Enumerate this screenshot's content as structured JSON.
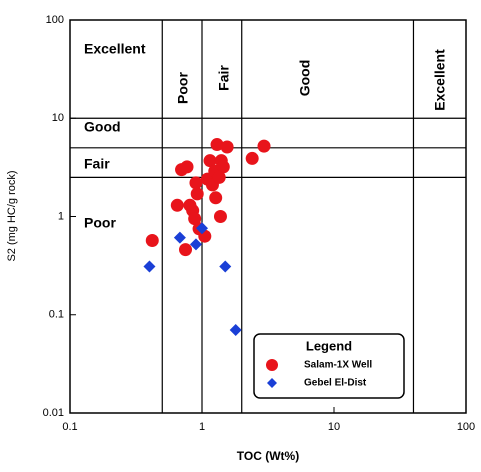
{
  "chart_data": {
    "type": "scatter",
    "x_label": "TOC (Wt%)",
    "y_label": "S2 (mg HC/g rock)",
    "log_x": true,
    "log_y": true,
    "xlim": [
      0.1,
      100
    ],
    "ylim": [
      0.01,
      100
    ],
    "xticks": [
      0.1,
      1,
      10,
      100
    ],
    "yticks": [
      0.01,
      0.1,
      1,
      10,
      100
    ],
    "toc_boundaries": [
      0.5,
      1,
      2,
      40
    ],
    "s2_boundaries": [
      2.5,
      5,
      10
    ],
    "s2_classes": [
      "Excellent",
      "Good",
      "Fair",
      "Poor"
    ],
    "toc_classes": [
      "Poor",
      "Fair",
      "Good",
      "Excellent"
    ],
    "legend_title": "Legend",
    "legend_position": "lower right",
    "series": [
      {
        "name": "Salam-1X Well",
        "color": "#e8141b",
        "marker": "circle",
        "x": [
          0.42,
          0.65,
          0.7,
          0.77,
          0.75,
          0.81,
          0.85,
          0.92,
          0.88,
          0.95,
          0.9,
          1.05,
          1.1,
          1.15,
          1.25,
          1.27,
          1.3,
          1.4,
          1.45,
          1.55,
          1.38,
          2.4,
          2.95,
          1.2,
          1.35
        ],
        "values": [
          0.57,
          1.3,
          3.0,
          3.2,
          0.46,
          1.3,
          1.15,
          1.7,
          0.95,
          0.75,
          2.2,
          0.63,
          2.4,
          3.7,
          2.9,
          1.55,
          5.4,
          3.7,
          3.2,
          5.1,
          1.0,
          3.9,
          5.2,
          2.1,
          2.5
        ]
      },
      {
        "name": "Gebel El-Dist",
        "color": "#1a3fd6",
        "marker": "diamond",
        "x": [
          0.4,
          0.68,
          0.9,
          1.0,
          1.5,
          1.8
        ],
        "values": [
          0.31,
          0.61,
          0.52,
          0.76,
          0.31,
          0.07
        ]
      }
    ]
  }
}
